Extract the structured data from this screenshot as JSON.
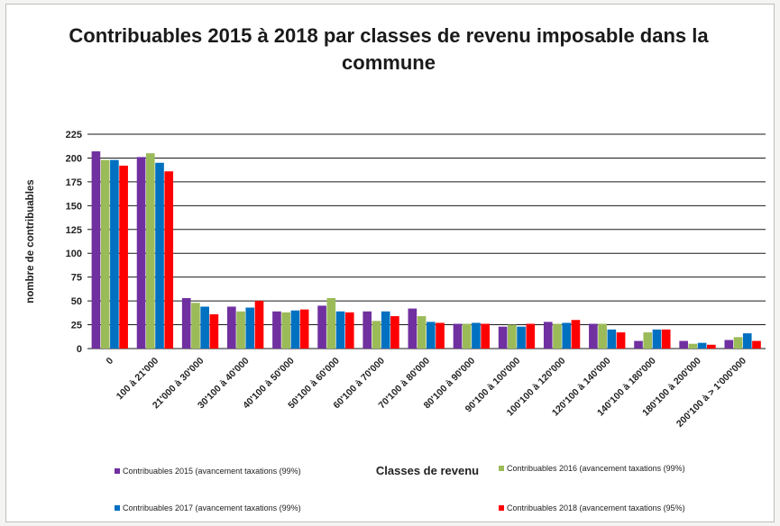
{
  "chart_data": {
    "type": "bar",
    "title": "Contribuables 2015 à 2018 par classes de revenu imposable dans la commune",
    "title_lines": [
      "Contribuables 2015 à 2018 par classes de revenu imposable dans la",
      "commune"
    ],
    "xlabel": "Classes de revenu",
    "ylabel": "nombre de contribuables",
    "ylim": [
      0,
      225
    ],
    "yticks": [
      0,
      25,
      50,
      75,
      100,
      125,
      150,
      175,
      200,
      225
    ],
    "grid": true,
    "legend_position": "bottom",
    "categories": [
      "0",
      "100 à 21'000",
      "21'000 à 30'000",
      "30'100 à 40'000",
      "40'100 à 50'000",
      "50'100 à 60'000",
      "60'100 à 70'000",
      "70'100 à 80'000",
      "80'100 à 90'000",
      "90'100 à 100'000",
      "100'100 à 120'000",
      "120'100 à 140'000",
      "140'100 à 180'000",
      "180'100 à 200'000",
      "200'100 à > 1'000'000"
    ],
    "series": [
      {
        "name": "Contribuables 2015 (avancement taxations (99%)",
        "color": "#7030a0",
        "values": [
          207,
          201,
          53,
          44,
          39,
          45,
          39,
          42,
          26,
          23,
          28,
          26,
          8,
          8,
          9
        ]
      },
      {
        "name": "Contribuables 2016 (avancement taxations (99%)",
        "color": "#9bbb59",
        "values": [
          198,
          205,
          48,
          39,
          38,
          53,
          29,
          34,
          26,
          25,
          26,
          26,
          17,
          5,
          12
        ]
      },
      {
        "name": "Contribuables 2017 (avancement taxations (99%)",
        "color": "#0070c0",
        "values": [
          198,
          195,
          44,
          43,
          40,
          39,
          39,
          28,
          27,
          23,
          27,
          20,
          20,
          6,
          16
        ]
      },
      {
        "name": "Contribuables 2018 (avancement taxations (95%)",
        "color": "#ff0000",
        "values": [
          192,
          186,
          36,
          50,
          41,
          38,
          34,
          27,
          26,
          26,
          30,
          17,
          20,
          4,
          8
        ]
      }
    ]
  }
}
